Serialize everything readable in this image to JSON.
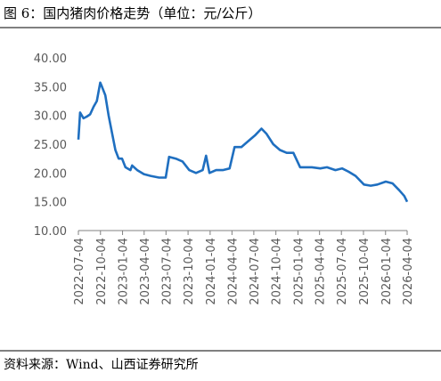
{
  "chart_data": {
    "type": "line",
    "title": "图 6：国内猪肉价格走势（单位：元/公斤）",
    "source": "资料来源：Wind、山西证券研究所",
    "x": [
      "2022-07-04",
      "2022-07-11",
      "2022-07-25",
      "2022-08-08",
      "2022-08-22",
      "2022-09-05",
      "2022-09-19",
      "2022-10-03",
      "2022-10-10",
      "2022-10-24",
      "2022-11-07",
      "2022-11-21",
      "2022-12-05",
      "2022-12-19",
      "2023-01-02",
      "2023-01-16",
      "2023-02-06",
      "2023-02-13",
      "2023-03-06",
      "2023-04-03",
      "2023-05-01",
      "2023-06-05",
      "2023-07-03",
      "2023-07-17",
      "2023-08-14",
      "2023-09-11",
      "2023-10-09",
      "2023-11-06",
      "2023-12-04",
      "2023-12-18",
      "2024-01-01",
      "2024-01-29",
      "2024-02-26",
      "2024-03-25",
      "2024-04-15",
      "2024-05-13",
      "2024-06-10",
      "2024-07-08",
      "2024-08-05",
      "2024-08-26",
      "2024-09-23",
      "2024-10-21",
      "2024-11-18",
      "2024-12-16",
      "2025-01-13",
      "2025-02-03",
      "2025-03-03",
      "2025-04-07",
      "2025-05-05",
      "2025-06-09",
      "2025-07-07",
      "2025-08-04",
      "2025-09-01",
      "2025-10-06",
      "2025-11-03",
      "2025-12-01",
      "2026-01-05",
      "2026-02-02",
      "2026-03-02",
      "2026-03-23",
      "2026-04-04"
    ],
    "series": [
      {
        "name": "猪肉价格",
        "color": "#1f6fc0",
        "values": [
          25.8,
          30.5,
          29.5,
          29.8,
          30.2,
          31.5,
          32.5,
          35.7,
          35.0,
          33.5,
          30.0,
          27.0,
          24.0,
          22.5,
          22.5,
          21.0,
          20.5,
          21.3,
          20.5,
          19.8,
          19.5,
          19.2,
          19.2,
          22.8,
          22.5,
          22.0,
          20.5,
          20.0,
          20.5,
          23.0,
          20.0,
          20.5,
          20.5,
          20.8,
          24.5,
          24.5,
          25.5,
          26.5,
          27.7,
          26.8,
          25.0,
          24.0,
          23.5,
          23.5,
          21.0,
          21.0,
          21.0,
          20.8,
          21.0,
          20.5,
          20.8,
          20.2,
          19.5,
          18.0,
          17.8,
          18.0,
          18.5,
          18.2,
          17.0,
          16.0,
          15.0
        ]
      }
    ],
    "xlim": [
      "2022-07-04",
      "2026-04-04"
    ],
    "xticks": [
      "2022-07-04",
      "2022-10-04",
      "2023-01-04",
      "2023-04-04",
      "2023-07-04",
      "2023-10-04",
      "2024-01-04",
      "2024-04-04",
      "2024-07-04",
      "2024-10-04",
      "2025-01-04",
      "2025-04-04",
      "2025-07-04",
      "2025-10-04",
      "2026-01-04",
      "2026-04-04"
    ],
    "ylim": [
      10,
      40
    ],
    "yticks": [
      {
        "value": 10,
        "label": "10.00"
      },
      {
        "value": 15,
        "label": "15.00"
      },
      {
        "value": 20,
        "label": "20.00"
      },
      {
        "value": 25,
        "label": "25.00"
      },
      {
        "value": 30,
        "label": "30.00"
      },
      {
        "value": 35,
        "label": "35.00"
      },
      {
        "value": 40,
        "label": "40.00"
      }
    ]
  }
}
